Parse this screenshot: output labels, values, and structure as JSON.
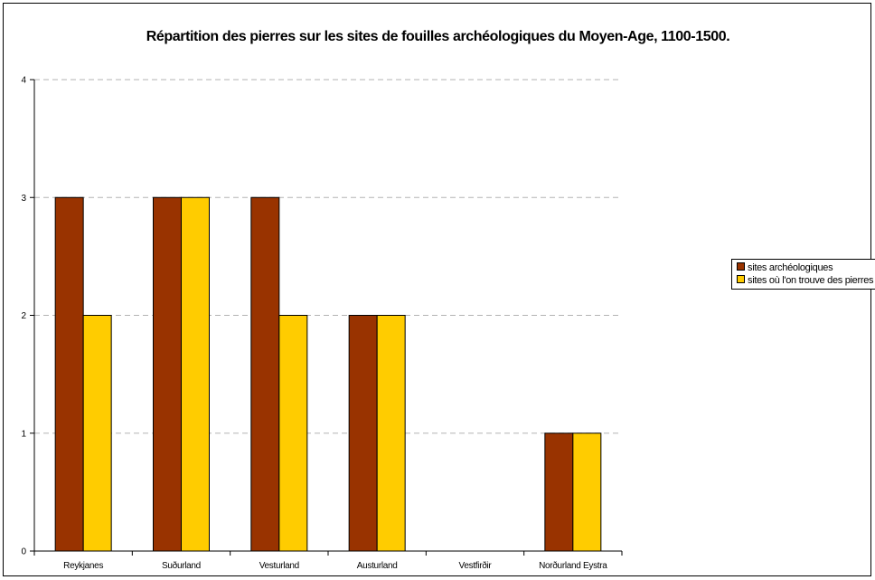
{
  "chart_data": {
    "type": "bar",
    "title": "Répartition des pierres sur les sites de fouilles archéologiques du Moyen-Age, 1100-1500.",
    "categories": [
      "Reykjanes",
      "Suðurland",
      "Vesturland",
      "Austurland",
      "Vestfirðir",
      "Norðurland Eystra"
    ],
    "series": [
      {
        "name": "sites archéologiques",
        "values": [
          3,
          3,
          3,
          2,
          0,
          1
        ],
        "color": "#993300"
      },
      {
        "name": "sites où l'on trouve des pierres",
        "values": [
          2,
          3,
          2,
          2,
          0,
          1
        ],
        "color": "#FFCC00"
      }
    ],
    "ylim": [
      0,
      4
    ],
    "yticks": [
      0,
      1,
      2,
      3,
      4
    ],
    "grid": true,
    "legend_position": "right"
  }
}
